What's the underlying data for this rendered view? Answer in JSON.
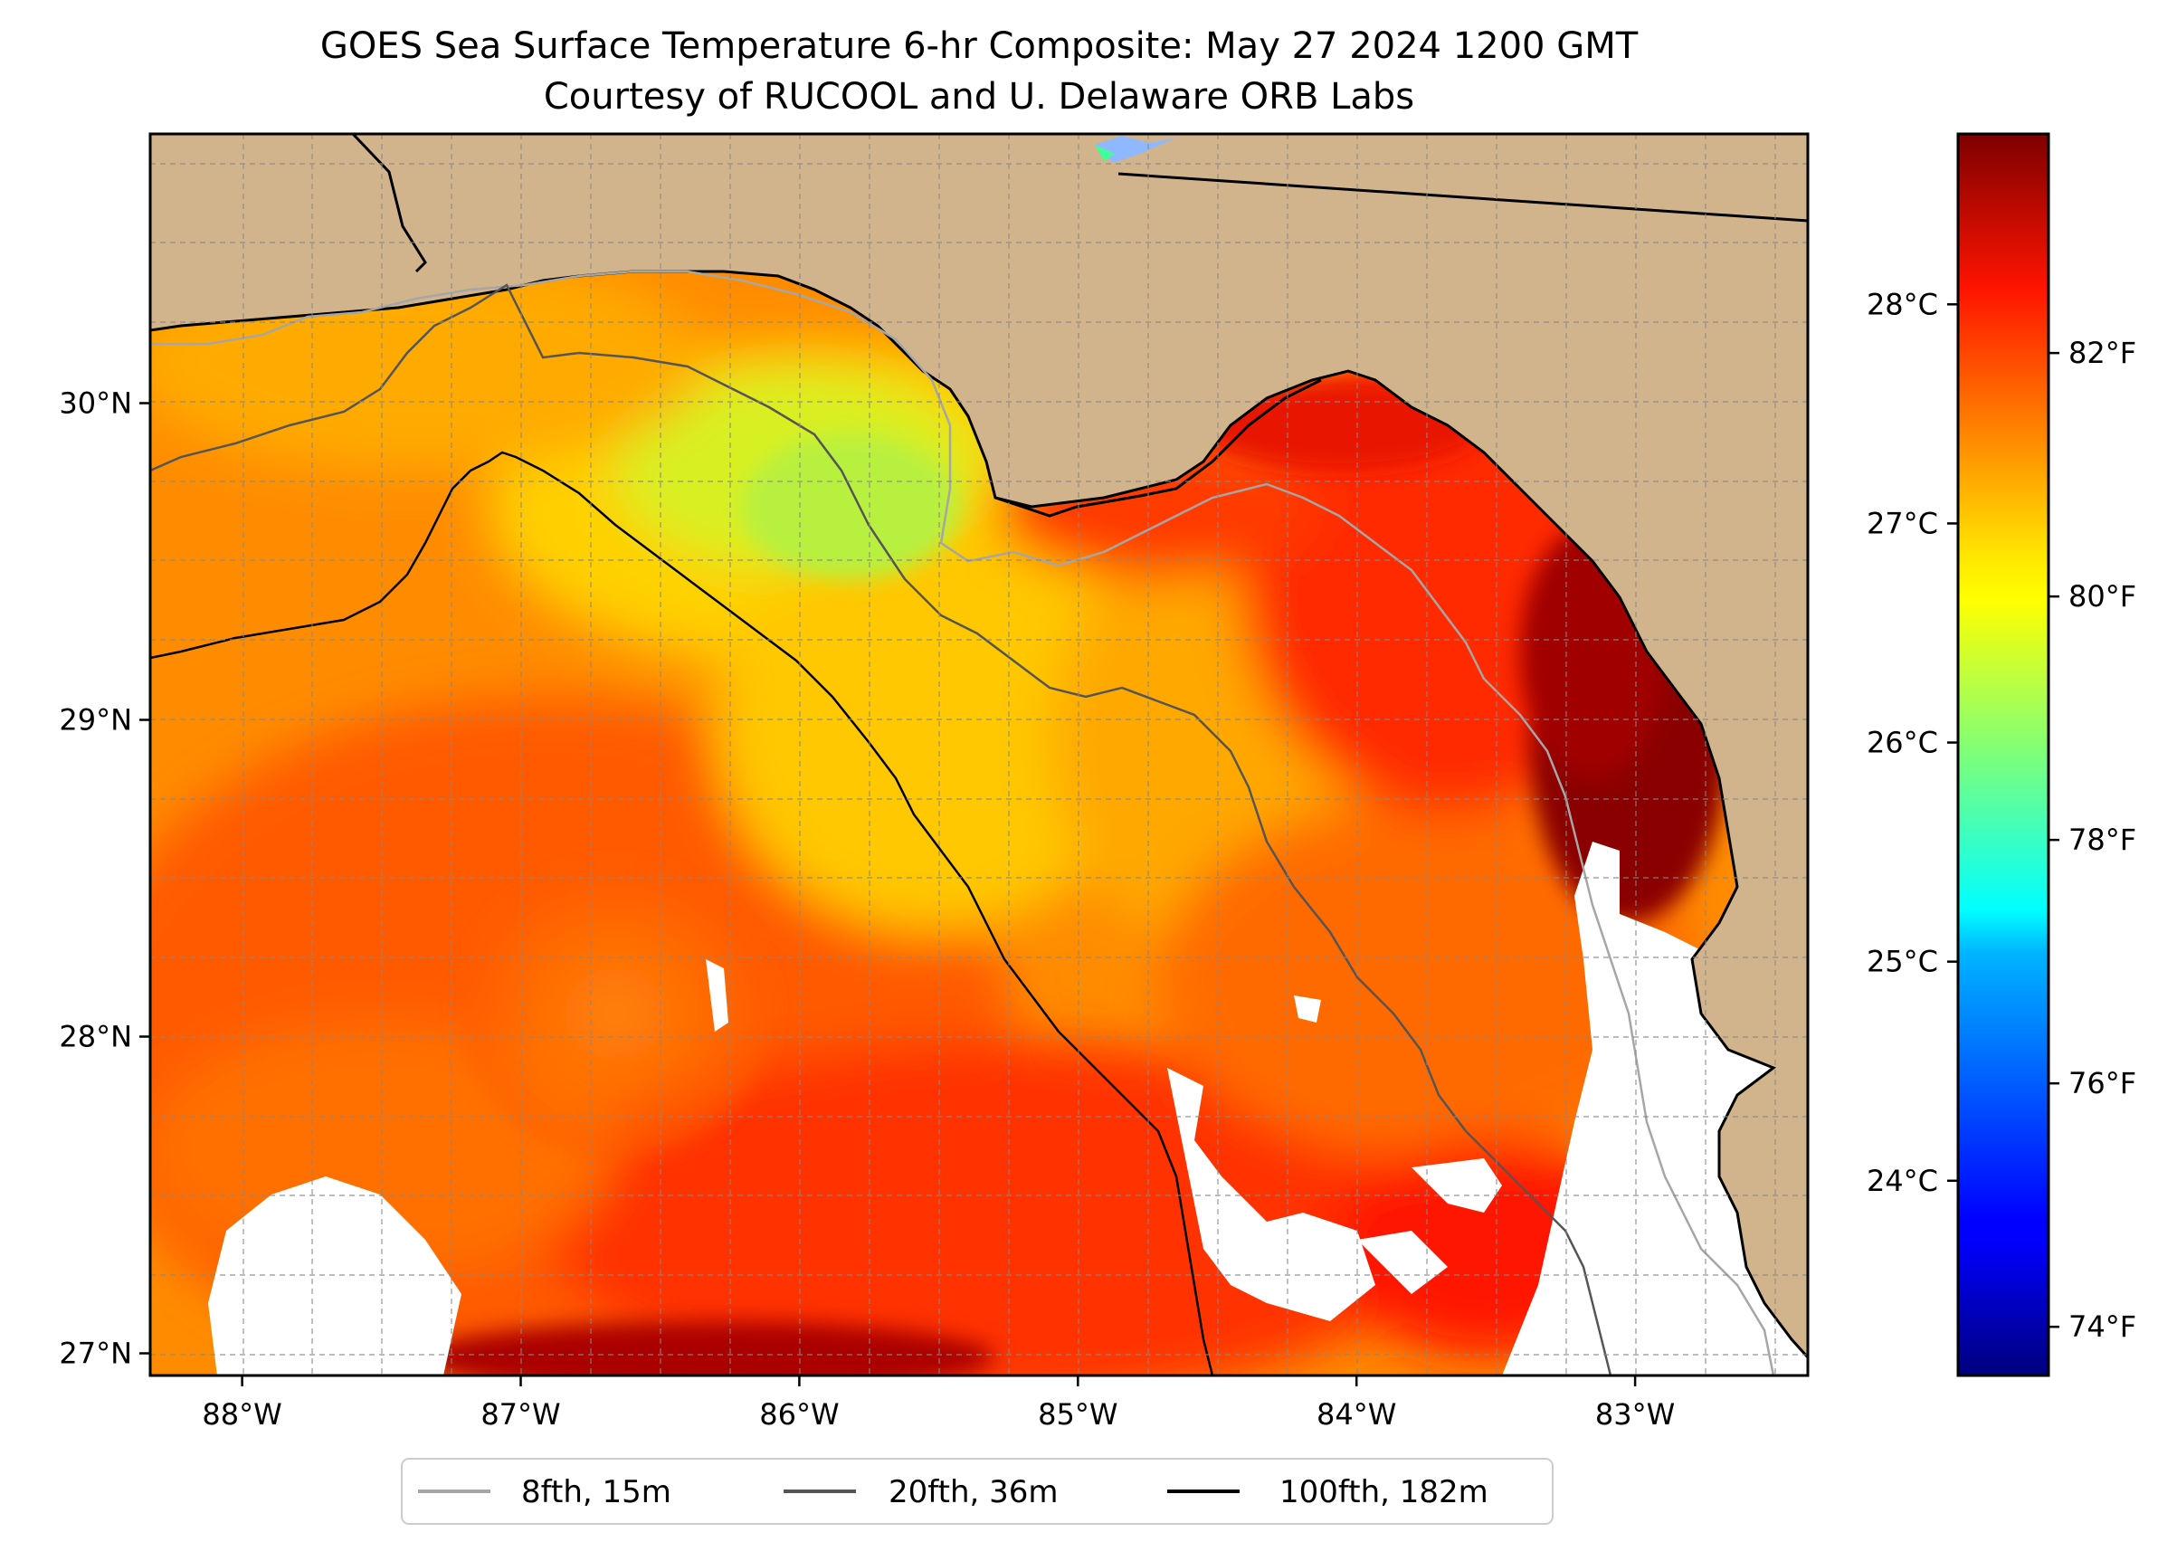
{
  "title": {
    "line1": "GOES Sea Surface Temperature 6-hr Composite: May 27 2024 1200 GMT",
    "line2": "Courtesy of RUCOOL and U. Delaware ORB Labs"
  },
  "map": {
    "lon_range": [
      -88.33,
      -82.38
    ],
    "lat_range": [
      26.93,
      30.85
    ],
    "gridlines": true,
    "grid_style": "dashed",
    "land_color": "#D2B48C",
    "no_data_color": "#ffffff",
    "lon_ticks": [
      {
        "value": -88,
        "label": "88°W"
      },
      {
        "value": -87,
        "label": "87°W"
      },
      {
        "value": -86,
        "label": "86°W"
      },
      {
        "value": -85,
        "label": "85°W"
      },
      {
        "value": -84,
        "label": "84°W"
      },
      {
        "value": -83,
        "label": "83°W"
      }
    ],
    "lat_ticks": [
      {
        "value": 27,
        "label": "27°N"
      },
      {
        "value": 28,
        "label": "28°N"
      },
      {
        "value": 29,
        "label": "29°N"
      },
      {
        "value": 30,
        "label": "30°N"
      }
    ]
  },
  "colorbar": {
    "colormap": "jet",
    "range_f": [
      73.6,
      83.8
    ],
    "celsius_ticks": [
      {
        "value": 24,
        "label": "24°C"
      },
      {
        "value": 25,
        "label": "25°C"
      },
      {
        "value": 26,
        "label": "26°C"
      },
      {
        "value": 27,
        "label": "27°C"
      },
      {
        "value": 28,
        "label": "28°C"
      }
    ],
    "fahrenheit_ticks": [
      {
        "value": 74,
        "label": "74°F"
      },
      {
        "value": 76,
        "label": "76°F"
      },
      {
        "value": 78,
        "label": "78°F"
      },
      {
        "value": 80,
        "label": "80°F"
      },
      {
        "value": 82,
        "label": "82°F"
      }
    ]
  },
  "legend": {
    "placement": "bottom-center",
    "items": [
      {
        "label": "8fth, 15m",
        "color": "#a6a6a6"
      },
      {
        "label": "20fth, 36m",
        "color": "#555555"
      },
      {
        "label": "100fth, 182m",
        "color": "#000000"
      }
    ]
  }
}
